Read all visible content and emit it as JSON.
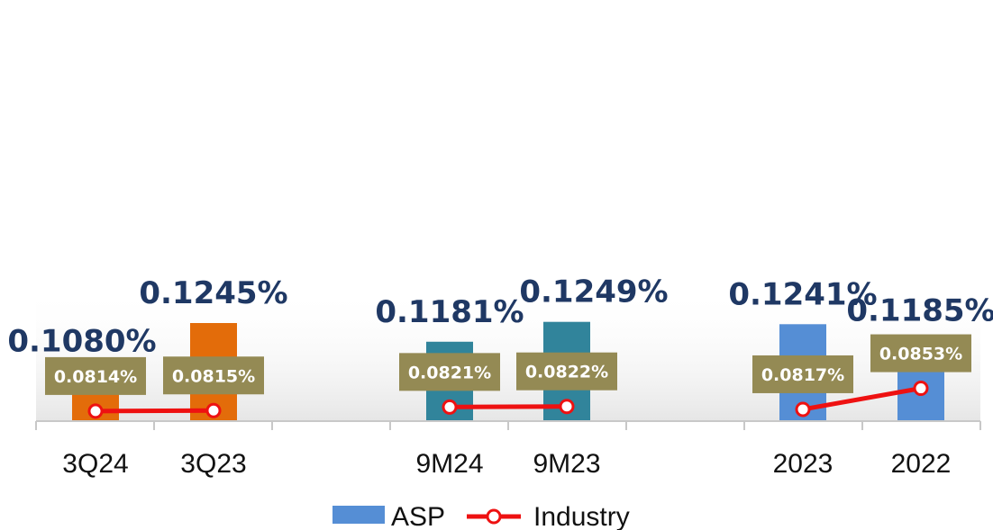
{
  "chart_data": {
    "type": "bar",
    "categories": [
      "3Q24",
      "3Q23",
      "9M24",
      "9M23",
      "2023",
      "2022"
    ],
    "groups": [
      {
        "categories": [
          "3Q24",
          "3Q23"
        ],
        "color": "#e36c0a"
      },
      {
        "categories": [
          "9M24",
          "9M23"
        ],
        "color": "#31849b"
      },
      {
        "categories": [
          "2023",
          "2022"
        ],
        "color": "#558ed5"
      }
    ],
    "series": [
      {
        "name": "ASP",
        "type": "bar",
        "values": [
          0.108,
          0.1245,
          0.1181,
          0.1249,
          0.1241,
          0.1185
        ],
        "labels": [
          "0.1080%",
          "0.1245%",
          "0.1181%",
          "0.1249%",
          "0.1241%",
          "0.1185%"
        ],
        "color": "#558ed5"
      },
      {
        "name": "Industry",
        "type": "line",
        "values": [
          0.0814,
          0.0815,
          0.0821,
          0.0822,
          0.0817,
          0.0853
        ],
        "labels": [
          "0.0814%",
          "0.0815%",
          "0.0821%",
          "0.0822%",
          "0.0817%",
          "0.0853%"
        ],
        "color": "#ee1111",
        "label_box_color": "#948a54"
      }
    ],
    "legend": {
      "position": "bottom",
      "entries": [
        "ASP",
        "Industry"
      ]
    },
    "grid": false
  }
}
